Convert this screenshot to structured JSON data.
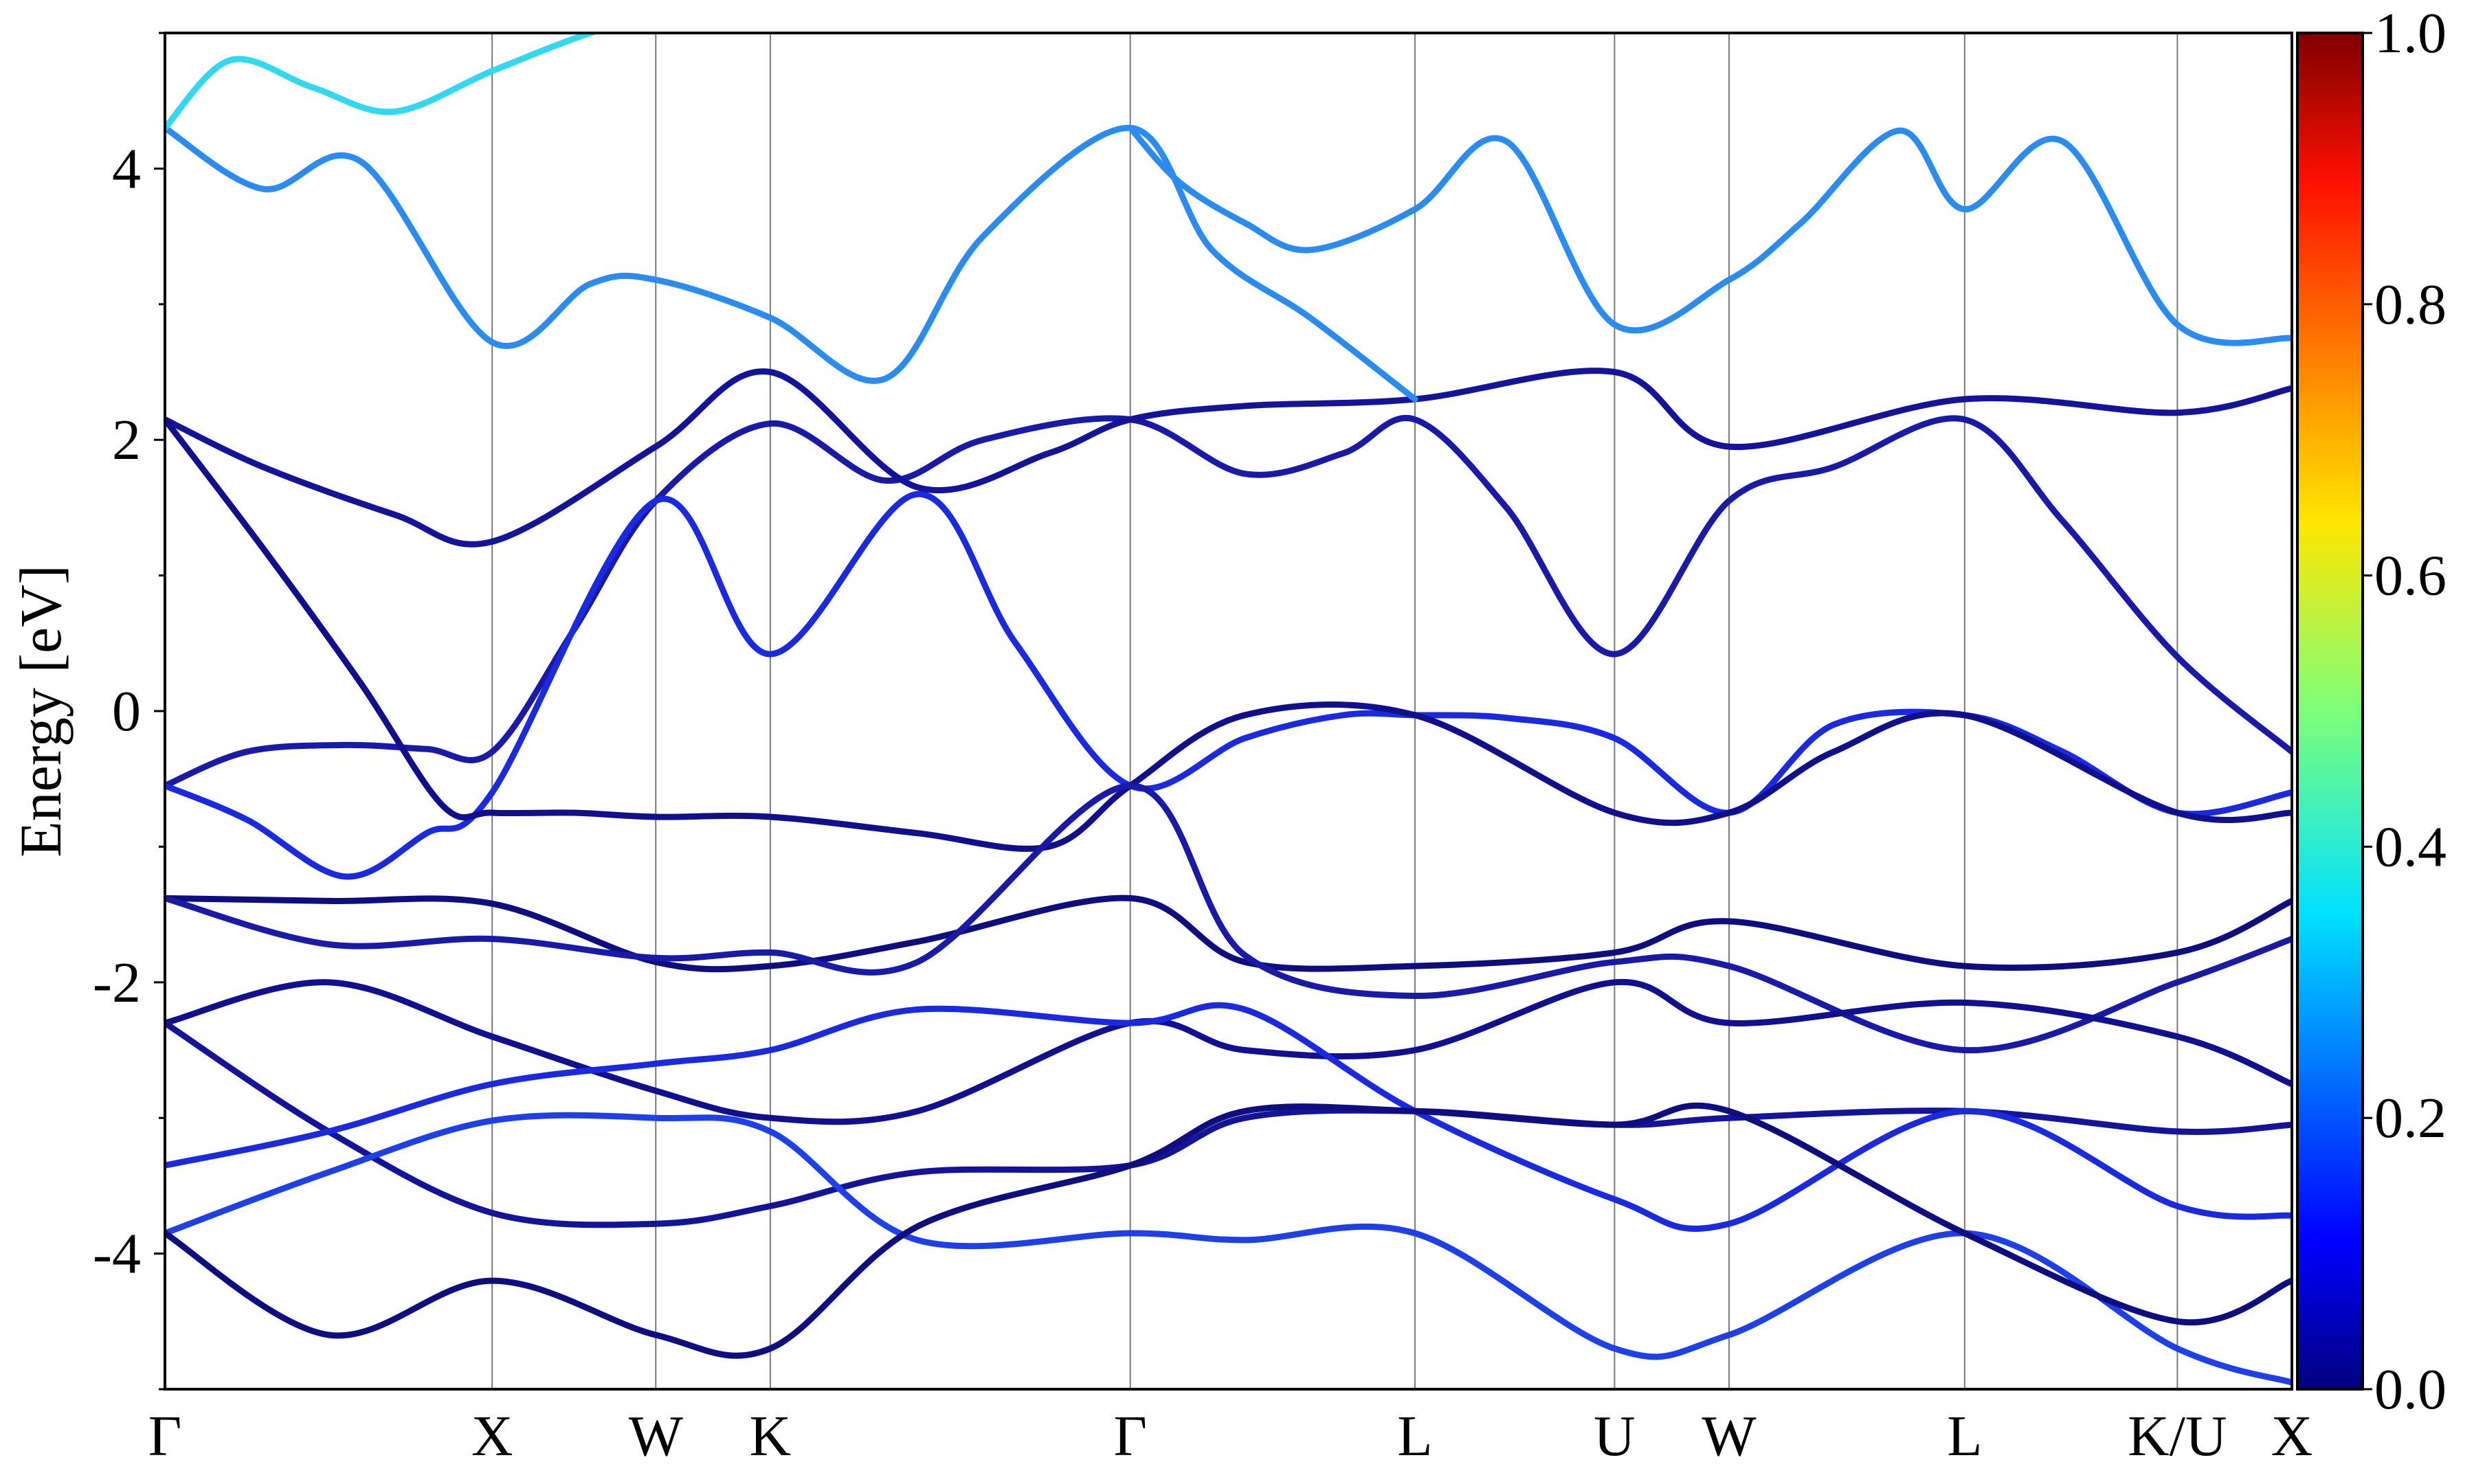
{
  "chart_data": {
    "type": "line",
    "title": "",
    "ylabel": "Energy [eV]",
    "xlabel": "",
    "ylim": [
      -5,
      5
    ],
    "y_ticks": [
      -4,
      -2,
      0,
      2,
      4
    ],
    "y_tick_labels": [
      "-4",
      "-2",
      "0",
      "2",
      "4"
    ],
    "grid": "vertical lines at high-symmetry points",
    "x_ticks": [
      {
        "label": "Γ",
        "x": 0.0
      },
      {
        "label": "X",
        "x": 1.0
      },
      {
        "label": "W",
        "x": 1.5
      },
      {
        "label": "K",
        "x": 1.85
      },
      {
        "label": "Γ",
        "x": 2.95
      },
      {
        "label": "L",
        "x": 3.82
      },
      {
        "label": "U",
        "x": 4.43
      },
      {
        "label": "W",
        "x": 4.78
      },
      {
        "label": "L",
        "x": 5.5
      },
      {
        "label": "K/U",
        "x": 6.15
      },
      {
        "label": "X",
        "x": 6.5
      }
    ],
    "xlim": [
      0,
      6.5
    ],
    "colorbar": {
      "colormap": "jet",
      "range": [
        0.0,
        1.0
      ],
      "ticks": [
        0.0,
        0.2,
        0.4,
        0.6,
        0.8,
        1.0
      ],
      "tick_labels": [
        "0.0",
        "0.2",
        "0.4",
        "0.6",
        "0.8",
        "1.0"
      ]
    },
    "series": [
      {
        "x": [
          0,
          0.25,
          0.55,
          0.8,
          1.0,
          1.25,
          1.5,
          1.85,
          2.2,
          2.5,
          2.95,
          3.3,
          3.6,
          3.82,
          4.1,
          4.43,
          4.78,
          5.1,
          5.5,
          5.8,
          6.15,
          6.5
        ],
        "y": [
          -0.55,
          -0.3,
          -0.25,
          -0.28,
          -0.3,
          0.6,
          1.55,
          2.12,
          1.7,
          2.0,
          2.15,
          1.75,
          1.9,
          2.15,
          1.5,
          0.42,
          1.55,
          1.8,
          2.15,
          1.4,
          0.4,
          -0.3
        ],
        "color": "#1a1aa8"
      },
      {
        "x": [
          0,
          0.25,
          0.55,
          0.8,
          1.0,
          1.5,
          1.85,
          2.3,
          2.6,
          2.95,
          3.3,
          3.6,
          3.82,
          4.1,
          4.43,
          4.78,
          5.1,
          5.5,
          5.8,
          6.15,
          6.5
        ],
        "y": [
          -0.55,
          -0.8,
          -1.22,
          -0.9,
          -0.6,
          1.55,
          0.42,
          1.6,
          0.5,
          -0.55,
          -0.2,
          -0.03,
          -0.03,
          -0.05,
          -0.2,
          -0.75,
          -0.1,
          -0.03,
          -0.3,
          -0.75,
          -0.6
        ],
        "color": "#1a2ae0"
      },
      {
        "x": [
          0,
          0.3,
          0.7,
          1.0,
          1.5,
          1.85,
          2.3,
          2.7,
          2.95,
          3.3,
          3.82,
          4.43,
          4.78,
          5.5,
          6.15,
          6.5
        ],
        "y": [
          2.15,
          1.8,
          1.45,
          1.25,
          1.95,
          2.5,
          1.65,
          1.9,
          2.15,
          2.25,
          2.3,
          2.5,
          1.95,
          2.3,
          2.2,
          2.38
        ],
        "color": "#14149a"
      },
      {
        "x": [
          0,
          0.3,
          0.6,
          0.85,
          1.0,
          1.25,
          1.5,
          1.85,
          2.3,
          2.7,
          2.95,
          3.3,
          3.82,
          4.43,
          4.78,
          5.1,
          5.5,
          6.15,
          6.5
        ],
        "y": [
          2.15,
          1.2,
          0.2,
          -0.7,
          -0.75,
          -0.75,
          -0.78,
          -0.78,
          -0.9,
          -1.0,
          -0.55,
          -0.03,
          -0.03,
          -0.75,
          -0.75,
          -0.3,
          -0.03,
          -0.75,
          -0.75
        ],
        "color": "#10108e"
      },
      {
        "x": [
          0,
          0.5,
          1.0,
          1.5,
          1.85,
          2.3,
          2.95,
          3.3,
          3.82,
          4.43,
          4.78,
          5.5,
          6.15,
          6.5
        ],
        "y": [
          -1.38,
          -1.4,
          -1.42,
          -1.85,
          -1.88,
          -1.7,
          -1.38,
          -1.85,
          -1.88,
          -1.78,
          -1.55,
          -1.88,
          -1.78,
          -1.4
        ],
        "color": "#0e0e80"
      },
      {
        "x": [
          0,
          0.5,
          1.0,
          1.5,
          1.85,
          2.3,
          2.95,
          3.3,
          3.82,
          4.43,
          4.78,
          5.5,
          6.15,
          6.5
        ],
        "y": [
          -1.38,
          -1.72,
          -1.68,
          -1.82,
          -1.78,
          -1.85,
          -0.55,
          -1.8,
          -2.1,
          -1.85,
          -1.88,
          -2.5,
          -2.0,
          -1.68
        ],
        "color": "#1a1aa8"
      },
      {
        "x": [
          0,
          0.5,
          1.0,
          1.5,
          1.85,
          2.3,
          2.95,
          3.3,
          3.82,
          4.43,
          4.78,
          5.5,
          6.15,
          6.5
        ],
        "y": [
          -2.3,
          -2.0,
          -2.4,
          -2.8,
          -3.0,
          -2.95,
          -2.3,
          -2.5,
          -2.5,
          -2.0,
          -2.3,
          -2.15,
          -2.4,
          -2.75
        ],
        "color": "#101090"
      },
      {
        "x": [
          0,
          0.5,
          1.0,
          1.5,
          1.85,
          2.3,
          2.95,
          3.3,
          3.82,
          4.43,
          4.78,
          5.5,
          6.15,
          6.5
        ],
        "y": [
          -2.3,
          -3.1,
          -3.7,
          -3.78,
          -3.65,
          -3.4,
          -3.35,
          -3.0,
          -2.95,
          -3.05,
          -3.0,
          -2.95,
          -3.1,
          -3.05
        ],
        "color": "#14149a"
      },
      {
        "x": [
          0,
          0.5,
          1.0,
          1.5,
          1.85,
          2.3,
          2.95,
          3.3,
          3.82,
          4.43,
          4.78,
          5.5,
          6.15,
          6.5
        ],
        "y": [
          -3.35,
          -3.1,
          -2.75,
          -2.6,
          -2.5,
          -2.2,
          -2.3,
          -2.2,
          -2.95,
          -3.6,
          -3.78,
          -2.95,
          -3.65,
          -3.72
        ],
        "color": "#1a2ae0"
      },
      {
        "x": [
          0,
          0.5,
          1.0,
          1.5,
          1.85,
          2.3,
          2.95,
          3.3,
          3.82,
          4.43,
          4.78,
          5.5,
          6.15,
          6.5
        ],
        "y": [
          -3.85,
          -3.4,
          -3.02,
          -3.0,
          -3.1,
          -3.9,
          -3.85,
          -3.9,
          -3.85,
          -4.7,
          -4.6,
          -3.85,
          -4.7,
          -4.95
        ],
        "color": "#1e40e8"
      },
      {
        "x": [
          0,
          0.5,
          1.0,
          1.5,
          1.85,
          2.3,
          2.95,
          3.3,
          3.82,
          4.43,
          4.78,
          5.5,
          6.15,
          6.5
        ],
        "y": [
          -3.85,
          -4.6,
          -4.2,
          -4.6,
          -4.7,
          -3.8,
          -3.35,
          -2.95,
          -2.95,
          -3.05,
          -2.95,
          -3.85,
          -4.5,
          -4.2
        ],
        "color": "#0e0e80"
      },
      {
        "x": [
          0,
          0.3,
          0.6,
          1.0,
          1.3,
          1.5,
          1.85,
          2.2,
          2.5,
          2.95,
          3.2,
          3.5,
          3.82
        ],
        "y": [
          4.3,
          3.85,
          4.05,
          2.72,
          3.15,
          3.18,
          2.9,
          2.45,
          3.5,
          4.3,
          3.4,
          2.9,
          2.3
        ],
        "color": "#2a8cf0"
      },
      {
        "x": [
          0,
          0.2,
          0.45,
          0.7,
          1.0,
          1.3,
          1.6
        ],
        "y": [
          4.3,
          4.8,
          4.6,
          4.42,
          4.72,
          5.0,
          5.2
        ],
        "color": "#30d8f0"
      },
      {
        "x": [
          2.95,
          3.1,
          3.3,
          3.5,
          3.82,
          4.1,
          4.43,
          4.78,
          5.0,
          5.3,
          5.5,
          5.8,
          6.15,
          6.5
        ],
        "y": [
          4.3,
          3.9,
          3.6,
          3.4,
          3.7,
          4.2,
          2.85,
          3.18,
          3.6,
          4.28,
          3.7,
          4.2,
          2.85,
          2.75
        ],
        "color": "#2a8cf0"
      }
    ]
  }
}
